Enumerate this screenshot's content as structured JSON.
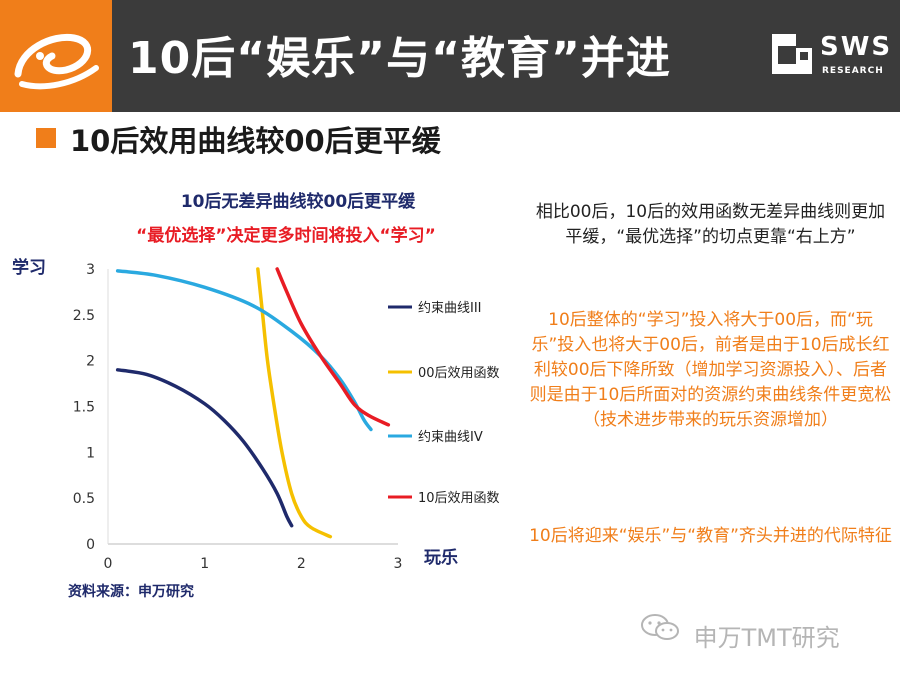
{
  "header": {
    "title": "10后“娱乐”与“教育”并进",
    "brand_text": "SWS",
    "brand_sub": "RESEARCH",
    "bg_color": "#3b3b3b",
    "accent_color": "#f07e1a"
  },
  "subheading": "10后效用曲线较00后更平缓",
  "chart_data": {
    "type": "line",
    "title": "10后无差异曲线较00后更平缓",
    "subtitle": "“最优选择”决定更多时间将投入“学习”",
    "xlabel": "玩乐",
    "ylabel": "学习",
    "xlim": [
      0,
      3
    ],
    "ylim": [
      0,
      3
    ],
    "xticks": [
      "0",
      "1",
      "2",
      "3"
    ],
    "yticks": [
      "0",
      "0.5",
      "1",
      "1.5",
      "2",
      "2.5",
      "3"
    ],
    "grid": false,
    "legend_position": "right",
    "series": [
      {
        "name": "约束曲线III",
        "color": "#1f2a6b",
        "points": [
          [
            0.1,
            1.9
          ],
          [
            0.4,
            1.85
          ],
          [
            0.7,
            1.72
          ],
          [
            1.0,
            1.53
          ],
          [
            1.2,
            1.35
          ],
          [
            1.4,
            1.12
          ],
          [
            1.6,
            0.82
          ],
          [
            1.75,
            0.55
          ],
          [
            1.85,
            0.3
          ],
          [
            1.9,
            0.2
          ]
        ]
      },
      {
        "name": "00后效用函数",
        "color": "#f5c000",
        "points": [
          [
            1.55,
            3.0
          ],
          [
            1.6,
            2.5
          ],
          [
            1.65,
            2.0
          ],
          [
            1.72,
            1.5
          ],
          [
            1.8,
            1.0
          ],
          [
            1.9,
            0.55
          ],
          [
            2.0,
            0.3
          ],
          [
            2.1,
            0.18
          ],
          [
            2.3,
            0.08
          ]
        ]
      },
      {
        "name": "约束曲线IV",
        "color": "#2aa9e0",
        "points": [
          [
            0.1,
            2.98
          ],
          [
            0.5,
            2.93
          ],
          [
            1.0,
            2.8
          ],
          [
            1.5,
            2.6
          ],
          [
            1.9,
            2.32
          ],
          [
            2.2,
            2.05
          ],
          [
            2.4,
            1.8
          ],
          [
            2.55,
            1.55
          ],
          [
            2.65,
            1.35
          ],
          [
            2.72,
            1.25
          ]
        ]
      },
      {
        "name": "10后效用函数",
        "color": "#e81c24",
        "points": [
          [
            1.75,
            3.0
          ],
          [
            1.85,
            2.75
          ],
          [
            2.0,
            2.4
          ],
          [
            2.2,
            2.05
          ],
          [
            2.4,
            1.75
          ],
          [
            2.55,
            1.52
          ],
          [
            2.7,
            1.4
          ],
          [
            2.9,
            1.3
          ]
        ]
      }
    ]
  },
  "source": "资料来源：申万研究",
  "notes": {
    "black": "相比00后，10后的效用函数无差异曲线则更加平缓，“最优选择”的切点更靠“右上方”",
    "orange1": "10后整体的“学习”投入将大于00后，而“玩乐”投入也将大于00后，前者是由于10后成长红利较00后下降所致（增加学习资源投入）、后者则是由于10后所面对的资源约束曲线条件更宽松（技术进步带来的玩乐资源增加）",
    "orange2": "10后将迎来“娱乐”与“教育”齐头并进的代际特征"
  },
  "watermark": "申万TMT研究"
}
